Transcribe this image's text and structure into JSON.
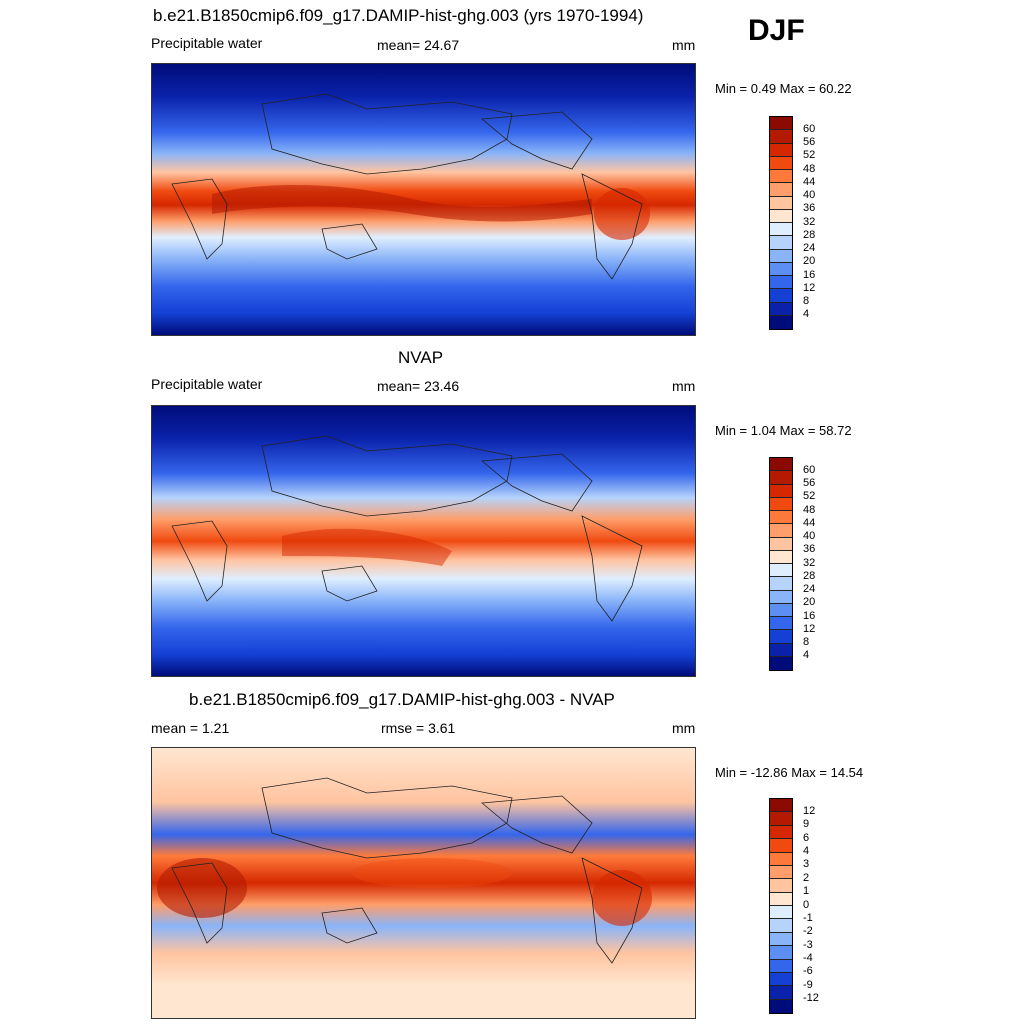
{
  "season": "DJF",
  "panels": [
    {
      "title": "b.e21.B1850cmip6.f09_g17.DAMIP-hist-ghg.003 (yrs 1970-1994)",
      "left_label": "Precipitable water",
      "center_label": "mean=  24.67",
      "right_label": "mm",
      "minmax": "Min =   0.49 Max =  60.22",
      "colorbar": {
        "labels": [
          "60",
          "56",
          "52",
          "48",
          "44",
          "40",
          "36",
          "32",
          "28",
          "24",
          "20",
          "16",
          "12",
          "8",
          "4"
        ],
        "colors": [
          "#8a0a00",
          "#b41a00",
          "#d52800",
          "#f04a10",
          "#ff7a3a",
          "#ff9e6a",
          "#ffc4a0",
          "#ffe6d0",
          "#dfeeff",
          "#b6d3fb",
          "#8ab4f8",
          "#5d8ef2",
          "#3466ec",
          "#1440d4",
          "#0a22aa",
          "#000c7a"
        ]
      }
    },
    {
      "title": "NVAP",
      "left_label": "Precipitable water",
      "center_label": "mean=  23.46",
      "right_label": "mm",
      "minmax": "Min =   1.04 Max =  58.72",
      "colorbar": {
        "labels": [
          "60",
          "56",
          "52",
          "48",
          "44",
          "40",
          "36",
          "32",
          "28",
          "24",
          "20",
          "16",
          "12",
          "8",
          "4"
        ],
        "colors": [
          "#8a0a00",
          "#b41a00",
          "#d52800",
          "#f04a10",
          "#ff7a3a",
          "#ff9e6a",
          "#ffc4a0",
          "#ffe6d0",
          "#dfeeff",
          "#b6d3fb",
          "#8ab4f8",
          "#5d8ef2",
          "#3466ec",
          "#1440d4",
          "#0a22aa",
          "#000c7a"
        ]
      }
    },
    {
      "title": "b.e21.B1850cmip6.f09_g17.DAMIP-hist-ghg.003 - NVAP",
      "left_label": "mean =   1.21",
      "center_label": "rmse =   3.61",
      "right_label": "mm",
      "minmax": "Min = -12.86 Max =  14.54",
      "colorbar": {
        "labels": [
          "12",
          "9",
          "6",
          "4",
          "3",
          "2",
          "1",
          "0",
          "-1",
          "-2",
          "-3",
          "-4",
          "-6",
          "-9",
          "-12"
        ],
        "colors": [
          "#8a0a00",
          "#b41a00",
          "#d52800",
          "#f04a10",
          "#ff7a3a",
          "#ff9e6a",
          "#ffc4a0",
          "#ffe6d0",
          "#dfeeff",
          "#b6d3fb",
          "#8ab4f8",
          "#5d8ef2",
          "#3466ec",
          "#1440d4",
          "#0a22aa",
          "#000c7a"
        ]
      }
    }
  ]
}
